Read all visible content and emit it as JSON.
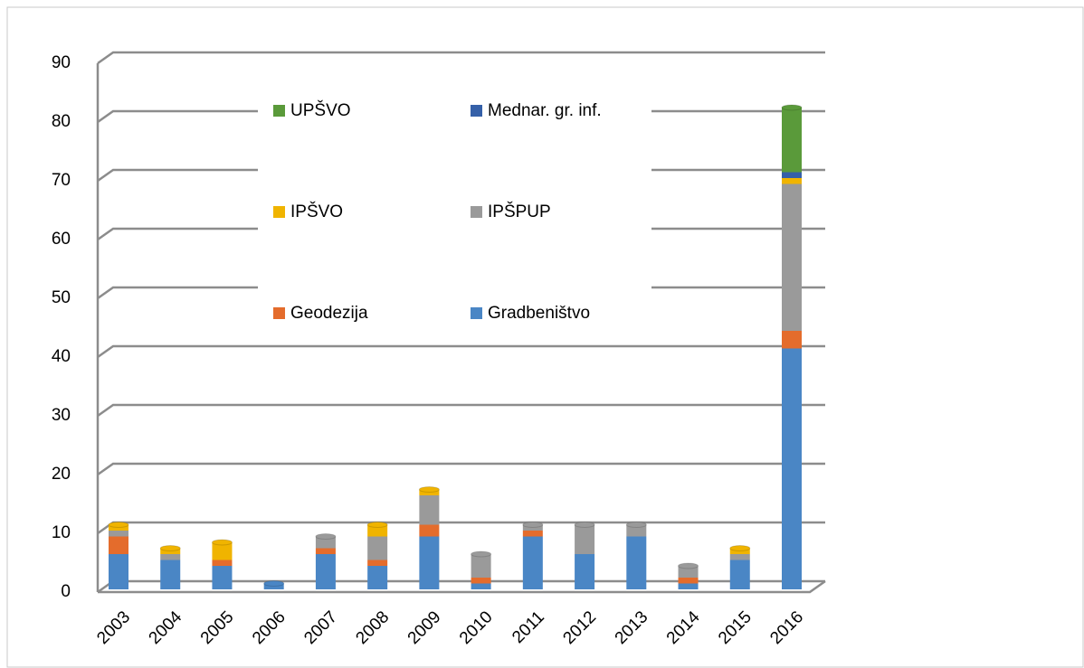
{
  "chart_data": {
    "type": "bar",
    "stacked": true,
    "categories": [
      "2003",
      "2004",
      "2005",
      "2006",
      "2007",
      "2008",
      "2009",
      "2010",
      "2011",
      "2012",
      "2013",
      "2014",
      "2015",
      "2016"
    ],
    "series": [
      {
        "name": "Gradbeništvo",
        "color": "#4a86c5",
        "values": [
          6,
          5,
          4,
          1,
          6,
          4,
          9,
          1,
          9,
          6,
          9,
          1,
          5,
          41
        ]
      },
      {
        "name": "Geodezija",
        "color": "#e46c2c",
        "values": [
          3,
          0,
          1,
          0,
          1,
          1,
          2,
          1,
          1,
          0,
          0,
          1,
          0,
          3
        ]
      },
      {
        "name": "IPŠPUP",
        "color": "#9a9a9a",
        "values": [
          1,
          1,
          0,
          0,
          2,
          4,
          5,
          4,
          1,
          5,
          2,
          2,
          1,
          25
        ]
      },
      {
        "name": "IPŠVO",
        "color": "#f0b400",
        "values": [
          1,
          1,
          3,
          0,
          0,
          2,
          1,
          0,
          0,
          0,
          0,
          0,
          1,
          1
        ]
      },
      {
        "name": "Mednar. gr. inf.",
        "color": "#3560a8",
        "values": [
          0,
          0,
          0,
          0,
          0,
          0,
          0,
          0,
          0,
          0,
          0,
          0,
          0,
          1
        ]
      },
      {
        "name": "UPŠVO",
        "color": "#5a9a3a",
        "values": [
          0,
          0,
          0,
          0,
          0,
          0,
          0,
          0,
          0,
          0,
          0,
          0,
          0,
          11
        ]
      }
    ],
    "ylim": [
      0,
      90
    ],
    "yticks": [
      0,
      10,
      20,
      30,
      40,
      50,
      60,
      70,
      80,
      90
    ],
    "grid": true
  }
}
